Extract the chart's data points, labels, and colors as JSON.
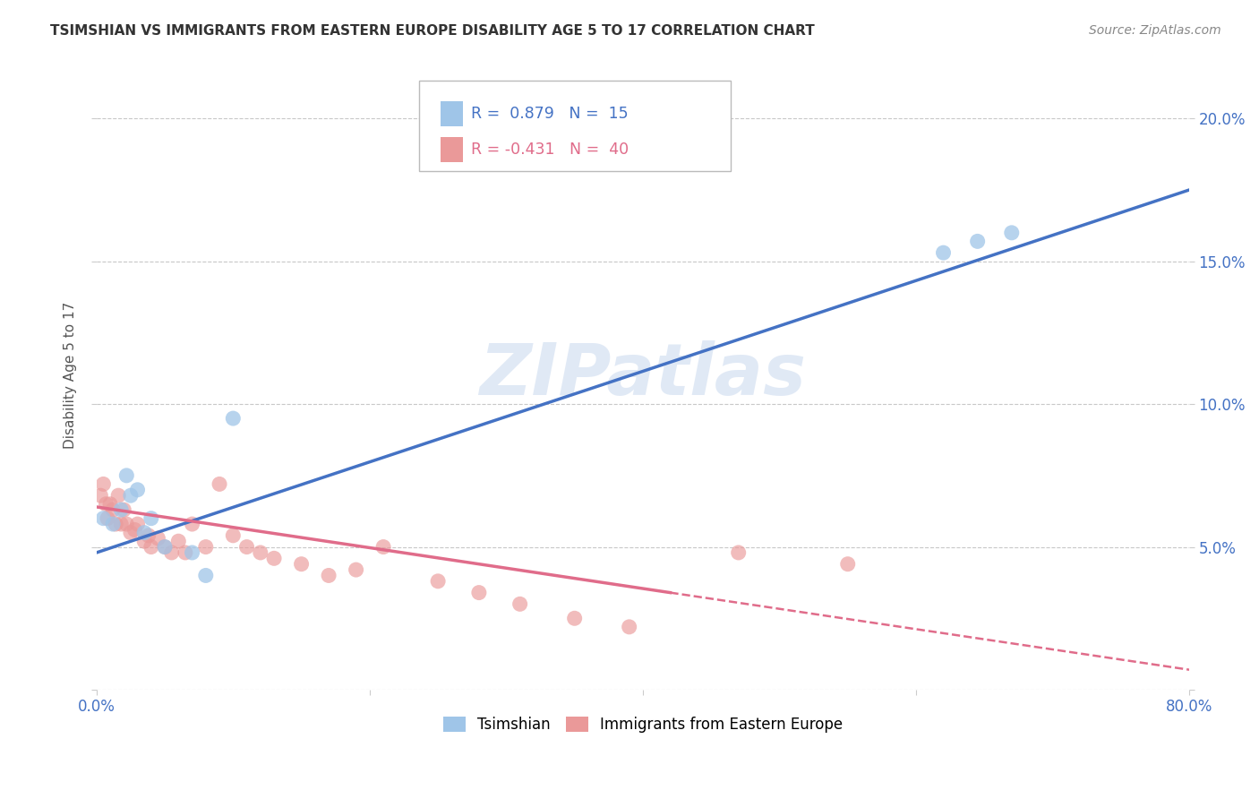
{
  "title": "TSIMSHIAN VS IMMIGRANTS FROM EASTERN EUROPE DISABILITY AGE 5 TO 17 CORRELATION CHART",
  "source": "Source: ZipAtlas.com",
  "ylabel": "Disability Age 5 to 17",
  "xlim": [
    0,
    0.8
  ],
  "ylim": [
    0,
    0.22
  ],
  "xticks": [
    0.0,
    0.2,
    0.4,
    0.6,
    0.8
  ],
  "yticks": [
    0.0,
    0.05,
    0.1,
    0.15,
    0.2
  ],
  "xticklabels": [
    "0.0%",
    "",
    "",
    "",
    "80.0%"
  ],
  "yticklabels_right": [
    "",
    "5.0%",
    "10.0%",
    "15.0%",
    "20.0%"
  ],
  "blue_scatter": {
    "x": [
      0.005,
      0.012,
      0.018,
      0.022,
      0.025,
      0.03,
      0.035,
      0.04,
      0.05,
      0.07,
      0.08,
      0.1,
      0.62,
      0.645,
      0.67
    ],
    "y": [
      0.06,
      0.058,
      0.063,
      0.075,
      0.068,
      0.07,
      0.055,
      0.06,
      0.05,
      0.048,
      0.04,
      0.095,
      0.153,
      0.157,
      0.16
    ]
  },
  "pink_scatter": {
    "x": [
      0.003,
      0.005,
      0.007,
      0.008,
      0.01,
      0.012,
      0.014,
      0.016,
      0.018,
      0.02,
      0.022,
      0.025,
      0.028,
      0.03,
      0.035,
      0.038,
      0.04,
      0.045,
      0.05,
      0.055,
      0.06,
      0.065,
      0.07,
      0.08,
      0.09,
      0.1,
      0.11,
      0.12,
      0.13,
      0.15,
      0.17,
      0.19,
      0.21,
      0.25,
      0.28,
      0.31,
      0.35,
      0.39,
      0.47,
      0.55
    ],
    "y": [
      0.068,
      0.072,
      0.065,
      0.06,
      0.065,
      0.063,
      0.058,
      0.068,
      0.058,
      0.063,
      0.058,
      0.055,
      0.056,
      0.058,
      0.052,
      0.054,
      0.05,
      0.053,
      0.05,
      0.048,
      0.052,
      0.048,
      0.058,
      0.05,
      0.072,
      0.054,
      0.05,
      0.048,
      0.046,
      0.044,
      0.04,
      0.042,
      0.05,
      0.038,
      0.034,
      0.03,
      0.025,
      0.022,
      0.048,
      0.044
    ]
  },
  "blue_color": "#9fc5e8",
  "pink_color": "#ea9999",
  "blue_line_color": "#4472c4",
  "pink_line_color": "#e06c8a",
  "blue_line": {
    "x0": 0.0,
    "y0": 0.048,
    "x1": 0.8,
    "y1": 0.175
  },
  "pink_line_solid": {
    "x0": 0.0,
    "y0": 0.064,
    "x1": 0.42,
    "y1": 0.034
  },
  "pink_line_dashed": {
    "x0": 0.42,
    "y0": 0.034,
    "x1": 0.8,
    "y1": 0.007
  },
  "R_blue": 0.879,
  "N_blue": 15,
  "R_pink": -0.431,
  "N_pink": 40,
  "watermark": "ZIPatlas",
  "background_color": "#ffffff",
  "grid_color": "#c8c8c8"
}
